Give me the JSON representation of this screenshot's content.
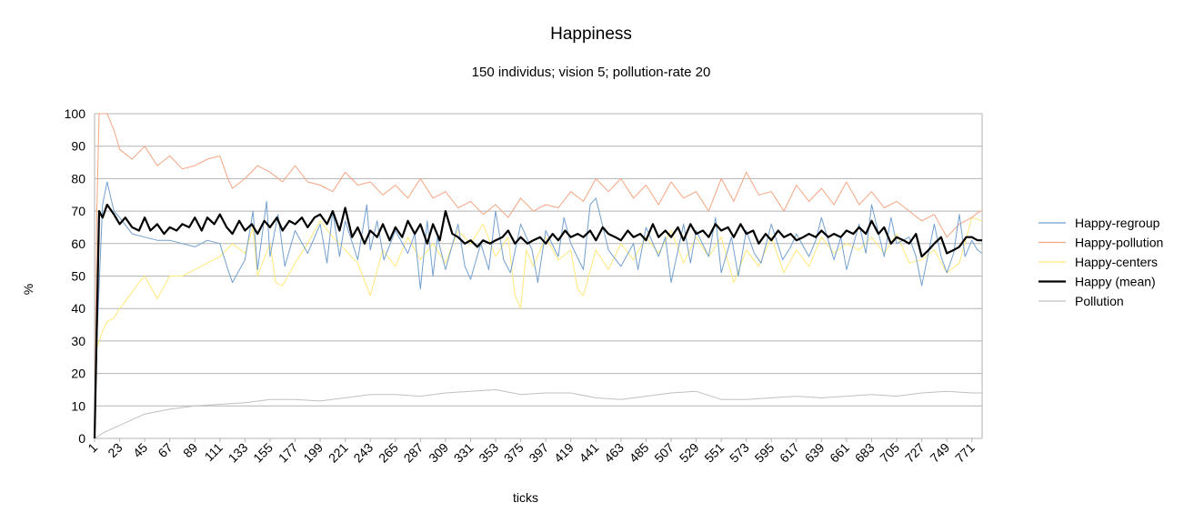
{
  "chart_data": {
    "type": "line",
    "title": "Happiness",
    "subtitle": "150 individus; vision 5; pollution-rate 20",
    "xlabel": "ticks",
    "ylabel": "%",
    "ylim": [
      0,
      100
    ],
    "yticks": [
      0,
      10,
      20,
      30,
      40,
      50,
      60,
      70,
      80,
      90,
      100
    ],
    "xlim": [
      1,
      780
    ],
    "xticks": [
      1,
      23,
      45,
      67,
      89,
      111,
      133,
      155,
      177,
      199,
      221,
      243,
      265,
      287,
      309,
      331,
      353,
      375,
      397,
      419,
      441,
      463,
      485,
      507,
      529,
      551,
      573,
      595,
      617,
      639,
      661,
      683,
      705,
      727,
      749,
      771
    ],
    "grid": "horizontal",
    "legend": "right",
    "series": [
      {
        "name": "Happy-regroup",
        "color": "#729fcf",
        "x": [
          1,
          3,
          8,
          12,
          18,
          23,
          34,
          45,
          56,
          67,
          78,
          89,
          100,
          111,
          118,
          122,
          133,
          140,
          144,
          152,
          155,
          162,
          168,
          177,
          188,
          199,
          205,
          210,
          216,
          221,
          232,
          240,
          243,
          249,
          255,
          265,
          276,
          282,
          287,
          293,
          298,
          302,
          309,
          320,
          326,
          331,
          340,
          347,
          353,
          360,
          366,
          375,
          385,
          390,
          397,
          408,
          413,
          419,
          430,
          436,
          441,
          452,
          463,
          474,
          478,
          485,
          496,
          502,
          507,
          518,
          524,
          529,
          540,
          546,
          551,
          560,
          566,
          573,
          580,
          586,
          595,
          605,
          612,
          617,
          628,
          634,
          639,
          650,
          656,
          661,
          672,
          678,
          683,
          694,
          700,
          705,
          716,
          722,
          727,
          738,
          744,
          749,
          755,
          760,
          765,
          771,
          776,
          780
        ],
        "values": [
          0,
          30,
          72,
          79,
          70,
          68,
          63,
          62,
          61,
          61,
          60,
          59,
          61,
          60,
          52,
          48,
          55,
          70,
          52,
          73,
          56,
          69,
          53,
          64,
          57,
          66,
          54,
          70,
          56,
          67,
          55,
          72,
          58,
          67,
          55,
          64,
          57,
          63,
          46,
          67,
          50,
          62,
          52,
          66,
          53,
          49,
          60,
          52,
          70,
          55,
          51,
          66,
          58,
          48,
          64,
          56,
          68,
          60,
          52,
          72,
          74,
          58,
          53,
          60,
          52,
          65,
          56,
          62,
          48,
          66,
          54,
          64,
          56,
          68,
          51,
          62,
          50,
          64,
          57,
          54,
          66,
          55,
          59,
          63,
          56,
          61,
          68,
          55,
          62,
          52,
          66,
          57,
          72,
          56,
          68,
          60,
          62,
          56,
          47,
          66,
          56,
          51,
          57,
          69,
          56,
          61,
          58,
          57
        ]
      },
      {
        "name": "Happy-pollution",
        "color": "#f4a582",
        "x": [
          1,
          3,
          5,
          12,
          18,
          23,
          34,
          45,
          56,
          67,
          78,
          89,
          100,
          111,
          118,
          122,
          133,
          144,
          155,
          166,
          177,
          188,
          199,
          210,
          221,
          232,
          243,
          254,
          265,
          276,
          287,
          298,
          309,
          320,
          331,
          342,
          353,
          364,
          375,
          386,
          397,
          408,
          419,
          430,
          441,
          452,
          463,
          474,
          485,
          496,
          507,
          518,
          529,
          540,
          551,
          562,
          573,
          584,
          595,
          606,
          617,
          628,
          639,
          650,
          661,
          672,
          683,
          694,
          705,
          716,
          727,
          738,
          749,
          760,
          771,
          778,
          780
        ],
        "values": [
          0,
          70,
          100,
          100,
          95,
          89,
          86,
          90,
          84,
          87,
          83,
          84,
          86,
          87,
          80,
          77,
          80,
          84,
          82,
          79,
          84,
          79,
          78,
          76,
          82,
          78,
          79,
          75,
          78,
          74,
          80,
          74,
          76,
          71,
          73,
          69,
          72,
          68,
          74,
          70,
          72,
          71,
          76,
          73,
          80,
          76,
          80,
          74,
          78,
          72,
          79,
          74,
          76,
          70,
          80,
          73,
          82,
          75,
          76,
          70,
          78,
          73,
          77,
          72,
          79,
          72,
          76,
          71,
          73,
          70,
          67,
          69,
          62,
          66,
          68,
          70,
          70
        ]
      },
      {
        "name": "Happy-centers",
        "color": "#ffe87a",
        "x": [
          1,
          3,
          8,
          12,
          18,
          23,
          34,
          40,
          45,
          56,
          67,
          78,
          89,
          100,
          111,
          122,
          133,
          140,
          144,
          155,
          160,
          166,
          177,
          188,
          199,
          210,
          221,
          232,
          243,
          254,
          265,
          276,
          287,
          298,
          309,
          320,
          331,
          342,
          353,
          364,
          370,
          375,
          380,
          386,
          397,
          408,
          419,
          425,
          430,
          441,
          452,
          463,
          474,
          485,
          496,
          507,
          518,
          529,
          540,
          551,
          562,
          573,
          584,
          595,
          606,
          617,
          628,
          639,
          650,
          661,
          672,
          683,
          694,
          705,
          716,
          727,
          738,
          749,
          760,
          771,
          780
        ],
        "values": [
          0,
          28,
          33,
          36,
          37,
          40,
          45,
          48,
          50,
          43,
          50,
          50,
          52,
          54,
          56,
          60,
          57,
          65,
          50,
          60,
          48,
          47,
          54,
          60,
          67,
          62,
          58,
          54,
          44,
          58,
          53,
          62,
          55,
          60,
          54,
          64,
          60,
          66,
          56,
          62,
          44,
          40,
          58,
          53,
          62,
          55,
          58,
          46,
          44,
          58,
          52,
          60,
          55,
          62,
          57,
          64,
          54,
          62,
          56,
          62,
          48,
          58,
          53,
          62,
          51,
          58,
          53,
          62,
          57,
          60,
          58,
          62,
          57,
          63,
          54,
          55,
          58,
          51,
          54,
          68,
          67
        ]
      },
      {
        "name": "Happy (mean)",
        "color": "#000000",
        "x": [
          1,
          3,
          5,
          8,
          12,
          18,
          23,
          28,
          34,
          40,
          45,
          50,
          56,
          62,
          67,
          73,
          78,
          84,
          89,
          95,
          100,
          106,
          111,
          117,
          122,
          128,
          133,
          139,
          144,
          150,
          155,
          161,
          166,
          172,
          177,
          183,
          188,
          194,
          199,
          205,
          210,
          216,
          221,
          227,
          232,
          238,
          243,
          249,
          254,
          260,
          265,
          271,
          276,
          282,
          287,
          293,
          298,
          304,
          309,
          315,
          320,
          326,
          331,
          337,
          342,
          348,
          353,
          359,
          364,
          370,
          375,
          381,
          386,
          392,
          397,
          403,
          408,
          414,
          419,
          425,
          430,
          436,
          441,
          447,
          452,
          458,
          463,
          469,
          474,
          480,
          485,
          491,
          496,
          502,
          507,
          513,
          518,
          524,
          529,
          535,
          540,
          546,
          551,
          557,
          562,
          568,
          573,
          579,
          584,
          590,
          595,
          601,
          606,
          612,
          617,
          623,
          628,
          634,
          639,
          645,
          650,
          656,
          661,
          667,
          672,
          678,
          683,
          689,
          694,
          700,
          705,
          711,
          716,
          722,
          727,
          733,
          738,
          744,
          749,
          755,
          760,
          766,
          771,
          776,
          780
        ],
        "values": [
          0,
          35,
          70,
          68,
          72,
          69,
          66,
          68,
          65,
          64,
          68,
          64,
          66,
          63,
          65,
          64,
          66,
          65,
          68,
          64,
          68,
          66,
          69,
          65,
          63,
          67,
          64,
          66,
          63,
          67,
          65,
          68,
          64,
          67,
          66,
          68,
          65,
          68,
          69,
          66,
          70,
          64,
          71,
          62,
          65,
          60,
          64,
          62,
          66,
          61,
          65,
          62,
          67,
          63,
          66,
          60,
          66,
          61,
          70,
          63,
          62,
          60,
          61,
          59,
          61,
          60,
          61,
          62,
          64,
          60,
          62,
          60,
          61,
          62,
          60,
          63,
          61,
          64,
          62,
          63,
          62,
          64,
          61,
          65,
          63,
          62,
          61,
          64,
          62,
          63,
          61,
          66,
          62,
          64,
          62,
          65,
          61,
          66,
          63,
          64,
          62,
          66,
          64,
          65,
          62,
          66,
          63,
          64,
          60,
          63,
          61,
          64,
          62,
          63,
          61,
          62,
          63,
          62,
          64,
          62,
          63,
          62,
          64,
          63,
          65,
          63,
          67,
          63,
          65,
          60,
          62,
          61,
          60,
          63,
          56,
          58,
          60,
          62,
          57,
          58,
          59,
          62,
          62,
          61,
          61
        ]
      },
      {
        "name": "Pollution",
        "color": "#c0c0c0",
        "x": [
          1,
          10,
          23,
          45,
          67,
          89,
          111,
          133,
          155,
          177,
          199,
          221,
          243,
          265,
          287,
          309,
          331,
          353,
          375,
          397,
          419,
          441,
          463,
          485,
          507,
          529,
          551,
          573,
          595,
          617,
          639,
          661,
          683,
          705,
          727,
          749,
          771,
          780
        ],
        "values": [
          0,
          2,
          4,
          7.5,
          9,
          10,
          10.5,
          11,
          12,
          12,
          11.5,
          12.5,
          13.5,
          13.5,
          13,
          14,
          14.5,
          15,
          13.5,
          14,
          14,
          12.5,
          12,
          13,
          14,
          14.5,
          12,
          12,
          12.5,
          13,
          12.5,
          13,
          13.5,
          13,
          14,
          14.5,
          14,
          14
        ]
      }
    ]
  }
}
